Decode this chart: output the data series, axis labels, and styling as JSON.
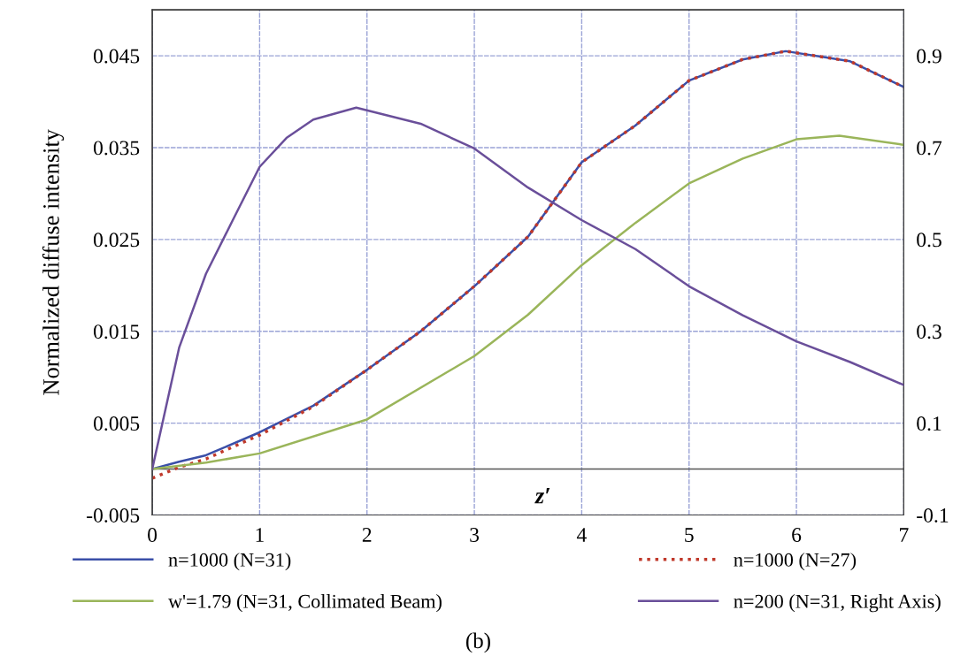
{
  "chart_data": {
    "type": "line",
    "xlabel": "z′",
    "ylabel": "Normalized diffuse intensity",
    "xlim": [
      0,
      7
    ],
    "xticks": [
      0,
      1,
      2,
      3,
      4,
      5,
      6,
      7
    ],
    "ylim": [
      -0.005,
      0.05
    ],
    "yticks": [
      -0.005,
      0.005,
      0.015,
      0.025,
      0.035,
      0.045
    ],
    "y2lim": [
      -0.1,
      1.0
    ],
    "y2ticks": [
      -0.1,
      0.1,
      0.3,
      0.5,
      0.7,
      0.9
    ],
    "grid": true,
    "legend": "bottom",
    "ref_lines": [
      {
        "axis": "y",
        "value": 0,
        "color": "#555555"
      }
    ],
    "annotations": [
      "(b)"
    ],
    "series": [
      {
        "name": "n=1000 (N=31)",
        "color": "#3a4fa8",
        "line_style": "solid",
        "x": [
          0,
          0.25,
          0.5,
          1,
          1.5,
          2,
          2.5,
          3,
          3.5,
          4,
          4.5,
          5,
          5.5,
          5.9,
          6.5,
          7
        ],
        "values": [
          0,
          0.0008,
          0.0015,
          0.004,
          0.0069,
          0.0108,
          0.015,
          0.0199,
          0.0253,
          0.0334,
          0.0374,
          0.0423,
          0.0446,
          0.0455,
          0.0444,
          0.0416
        ]
      },
      {
        "name": "n=1000 (N=27)",
        "color": "#c0392b",
        "line_style": "dotted",
        "x": [
          0,
          0.25,
          0.5,
          1,
          1.5,
          2,
          2.5,
          3,
          3.5,
          4,
          4.5,
          5,
          5.5,
          5.9,
          6.5,
          7
        ],
        "values": [
          -0.001,
          0.0002,
          0.0011,
          0.0037,
          0.0068,
          0.0108,
          0.015,
          0.0199,
          0.0253,
          0.0334,
          0.0374,
          0.0423,
          0.0446,
          0.0455,
          0.0444,
          0.0416
        ]
      },
      {
        "name": "w'=1.79 (N=31, Collimated Beam)",
        "color": "#9ab55a",
        "line_style": "solid",
        "x": [
          0,
          0.5,
          1,
          2,
          3,
          3.5,
          4,
          4.5,
          5,
          5.5,
          6,
          6.4,
          7
        ],
        "values": [
          0,
          0.0007,
          0.0017,
          0.0054,
          0.0123,
          0.0168,
          0.0222,
          0.0268,
          0.0311,
          0.0338,
          0.0359,
          0.0363,
          0.0353
        ]
      },
      {
        "name": "n=200 (N=31, Right Axis)",
        "color": "#6a4f9a",
        "line_style": "solid",
        "axis": "y2",
        "x": [
          0,
          0.25,
          0.5,
          0.75,
          1,
          1.25,
          1.5,
          1.9,
          2.5,
          3,
          3.5,
          4,
          4.5,
          5,
          5.5,
          6,
          6.5,
          7
        ],
        "values": [
          0,
          0.264,
          0.425,
          0.542,
          0.658,
          0.721,
          0.761,
          0.787,
          0.752,
          0.698,
          0.613,
          0.542,
          0.479,
          0.398,
          0.335,
          0.278,
          0.233,
          0.183
        ]
      }
    ]
  }
}
